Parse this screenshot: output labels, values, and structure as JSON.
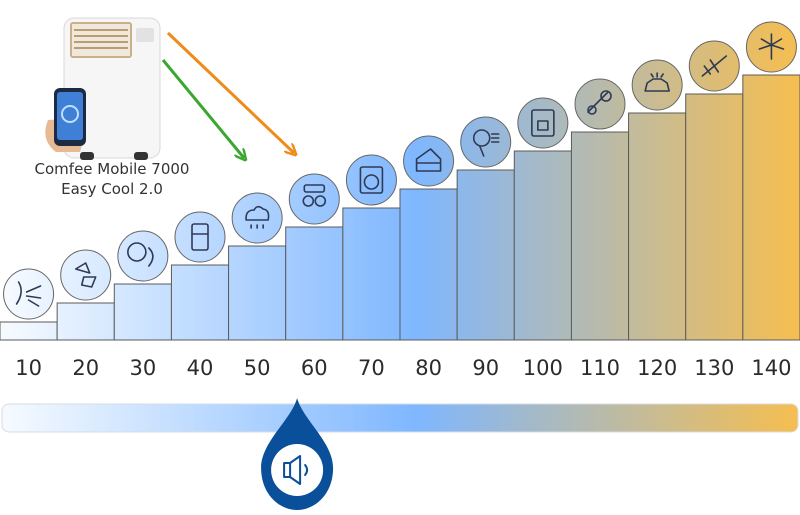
{
  "chart_data": {
    "type": "bar",
    "title": "",
    "xlabel": "",
    "ylabel": "",
    "categories": [
      "10",
      "20",
      "30",
      "40",
      "50",
      "60",
      "70",
      "80",
      "90",
      "100",
      "110",
      "120",
      "130",
      "140"
    ],
    "values": [
      10,
      20,
      30,
      40,
      50,
      60,
      70,
      80,
      90,
      100,
      110,
      120,
      130,
      140
    ],
    "ylim": [
      0,
      140
    ],
    "grid": false,
    "icons": [
      "breath-icon",
      "falling-leaves-icon",
      "whisper-icon",
      "refrigerator-icon",
      "rain-cloud-icon",
      "conversation-icon",
      "washing-machine-icon",
      "piano-icon",
      "hair-dryer-icon",
      "coffee-machine-icon",
      "chainsaw-icon",
      "car-alarm-icon",
      "jet-plane-icon",
      "fireworks-icon"
    ],
    "colors": {
      "gradient_start": "#f7fbff",
      "gradient_mid": "#7fb7ff",
      "gradient_end": "#f6be4f",
      "marker": "#0a4f9a",
      "green_arrow": "#3aa82f",
      "orange_arrow": "#ef8b1a"
    },
    "product": {
      "label_line1": "Comfee Mobile 7000",
      "label_line2": "Easy Cool 2.0",
      "noise_level": 57
    },
    "scale_min": 5,
    "scale_max": 145
  }
}
